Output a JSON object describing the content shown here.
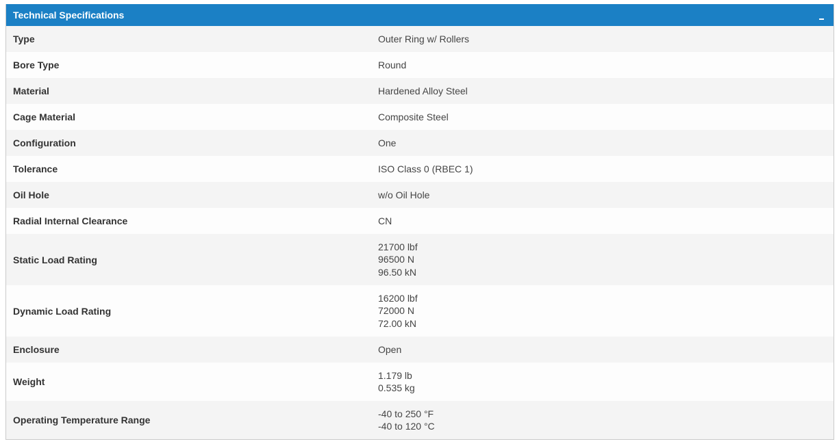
{
  "panel": {
    "title": "Technical Specifications",
    "collapse_icon": "minus-icon"
  },
  "specs": [
    {
      "label": "Type",
      "values": [
        "Outer Ring w/ Rollers"
      ]
    },
    {
      "label": "Bore Type",
      "values": [
        "Round"
      ]
    },
    {
      "label": "Material",
      "values": [
        "Hardened Alloy Steel"
      ]
    },
    {
      "label": "Cage Material",
      "values": [
        "Composite Steel"
      ]
    },
    {
      "label": "Configuration",
      "values": [
        "One"
      ]
    },
    {
      "label": "Tolerance",
      "values": [
        "ISO Class 0 (RBEC 1)"
      ]
    },
    {
      "label": "Oil Hole",
      "values": [
        "w/o Oil Hole"
      ]
    },
    {
      "label": "Radial Internal Clearance",
      "values": [
        "CN"
      ]
    },
    {
      "label": "Static Load Rating",
      "values": [
        "21700 lbf",
        "96500 N",
        "96.50 kN"
      ]
    },
    {
      "label": "Dynamic Load Rating",
      "values": [
        "16200 lbf",
        "72000 N",
        "72.00 kN"
      ]
    },
    {
      "label": "Enclosure",
      "values": [
        "Open"
      ]
    },
    {
      "label": "Weight",
      "values": [
        "1.179 lb",
        "0.535 kg"
      ]
    },
    {
      "label": "Operating Temperature Range",
      "values": [
        "-40 to 250 °F",
        "-40 to 120 °C"
      ]
    }
  ],
  "colors": {
    "header_bg": "#1b80c5",
    "row_odd": "#f4f4f4",
    "row_even": "#fdfdfd"
  }
}
